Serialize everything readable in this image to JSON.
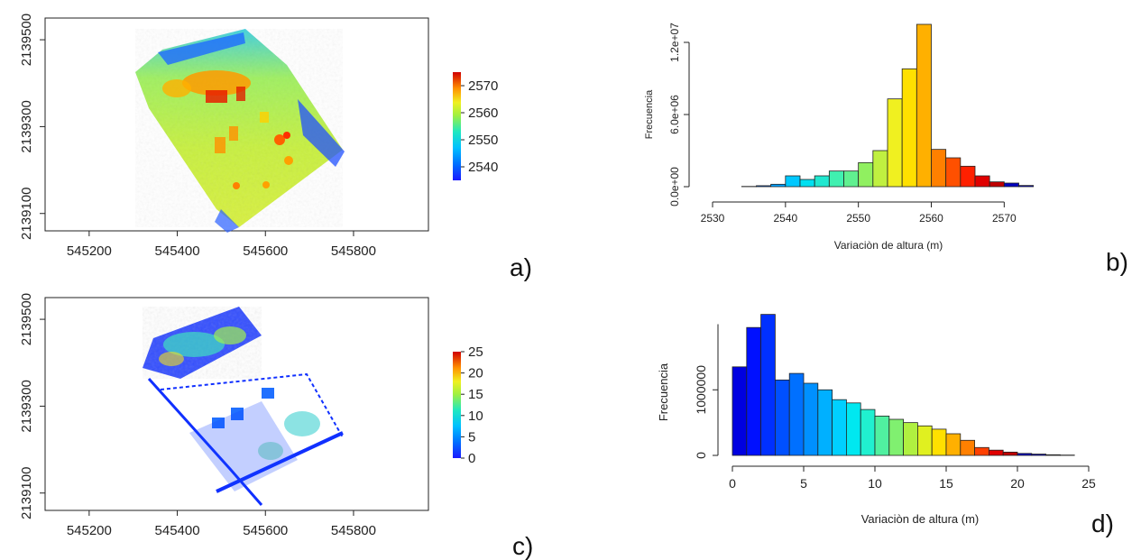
{
  "panels": {
    "a": "a)",
    "b": "b)",
    "c": "c)",
    "d": "d)"
  },
  "chart_data": [
    {
      "id": "map_a",
      "type": "heatmap",
      "xlim": [
        545100,
        545970
      ],
      "ylim": [
        2139060,
        2139550
      ],
      "x_ticks": [
        "545200",
        "545400",
        "545600",
        "545800"
      ],
      "y_ticks": [
        "2139100",
        "2139300",
        "2139500"
      ],
      "colorbar": {
        "range": [
          2535,
          2575
        ],
        "ticks": [
          "2540",
          "2550",
          "2560",
          "2570"
        ]
      }
    },
    {
      "id": "hist_b",
      "type": "bar",
      "xlabel": "Variaciòn de altura (m)",
      "ylabel": "Frecuencia",
      "xlim": [
        2530,
        2578
      ],
      "ylim": [
        0,
        13500000
      ],
      "x_ticks": [
        "2530",
        "2540",
        "2550",
        "2560",
        "2570"
      ],
      "y_ticks": [
        "0.0e+00",
        "6.0e+06",
        "1.2e+07"
      ],
      "bin_edges": [
        2530,
        2532,
        2534,
        2536,
        2538,
        2540,
        2542,
        2544,
        2546,
        2548,
        2550,
        2552,
        2554,
        2556,
        2558,
        2560,
        2562,
        2564,
        2566,
        2568,
        2570,
        2572,
        2574,
        2576,
        2578
      ],
      "values": [
        0,
        0,
        20000,
        80000,
        200000,
        900000,
        600000,
        900000,
        1300000,
        1300000,
        2000000,
        3000000,
        7300000,
        9800000,
        13500000,
        3100000,
        2400000,
        1700000,
        900000,
        400000,
        300000,
        100000,
        0,
        0
      ],
      "colors": [
        "#1010ff",
        "#1010ff",
        "#0030ff",
        "#0068ff",
        "#00a0ff",
        "#00c8ff",
        "#00e0f0",
        "#20e8d0",
        "#40f0b0",
        "#60f090",
        "#90f060",
        "#c0f040",
        "#f0f020",
        "#ffe000",
        "#ffb000",
        "#ff8000",
        "#ff5000",
        "#ff2000",
        "#e00000",
        "#c00000",
        "#0000c0",
        "#0000c0",
        "#0000c0",
        "#0000c0"
      ]
    },
    {
      "id": "map_c",
      "type": "heatmap",
      "xlim": [
        545100,
        545970
      ],
      "ylim": [
        2139060,
        2139550
      ],
      "x_ticks": [
        "545200",
        "545400",
        "545600",
        "545800"
      ],
      "y_ticks": [
        "2139100",
        "2139300",
        "2139500"
      ],
      "colorbar": {
        "range": [
          0,
          25
        ],
        "ticks": [
          "0",
          "5",
          "10",
          "15",
          "20",
          "25"
        ]
      }
    },
    {
      "id": "hist_d",
      "type": "bar",
      "xlabel": "Variaciòn de altura (m)",
      "ylabel": "Frecuencia",
      "xlim": [
        0,
        25
      ],
      "ylim": [
        0,
        2200000
      ],
      "x_ticks": [
        "0",
        "5",
        "10",
        "15",
        "20",
        "25"
      ],
      "y_ticks": [
        "0",
        "1000000"
      ],
      "bin_edges": [
        0,
        1,
        2,
        3,
        4,
        5,
        6,
        7,
        8,
        9,
        10,
        11,
        12,
        13,
        14,
        15,
        16,
        17,
        18,
        19,
        20,
        21,
        22,
        23,
        24,
        25
      ],
      "values": [
        1350000,
        1950000,
        2150000,
        1150000,
        1250000,
        1100000,
        1000000,
        850000,
        800000,
        700000,
        600000,
        550000,
        500000,
        450000,
        400000,
        330000,
        230000,
        120000,
        80000,
        50000,
        30000,
        20000,
        10000,
        5000,
        0
      ],
      "colors": [
        "#0000e0",
        "#0010ff",
        "#0030ff",
        "#0050ff",
        "#0070ff",
        "#0090ff",
        "#00b0ff",
        "#00d0ff",
        "#00e8f0",
        "#20f0d0",
        "#50f0a0",
        "#80f070",
        "#b0f040",
        "#e0f020",
        "#ffe000",
        "#ffb000",
        "#ff8000",
        "#ff4000",
        "#e00000",
        "#c00000",
        "#0000c0",
        "#0000c0",
        "#0000c0",
        "#0000c0",
        "#0000c0"
      ]
    }
  ]
}
